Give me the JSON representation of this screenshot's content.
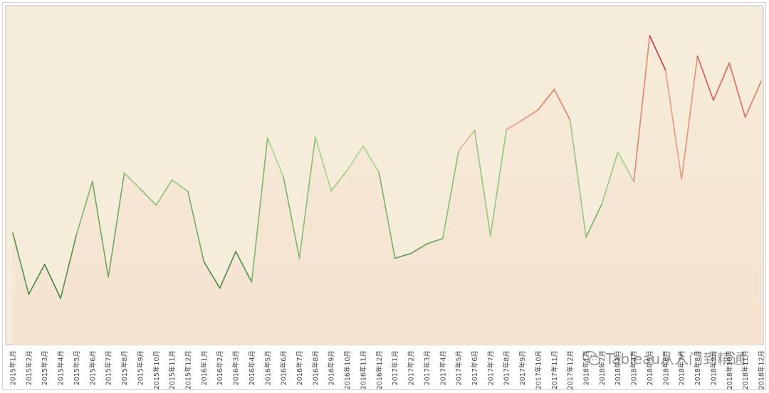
{
  "chart_data": {
    "type": "area",
    "categories": [
      "2015年1月",
      "2015年2月",
      "2015年3月",
      "2015年4月",
      "2015年5月",
      "2015年6月",
      "2015年7月",
      "2015年8月",
      "2015年9月",
      "2015年10月",
      "2015年11月",
      "2015年12月",
      "2016年1月",
      "2016年2月",
      "2016年3月",
      "2016年4月",
      "2016年5月",
      "2016年6月",
      "2016年7月",
      "2016年8月",
      "2016年9月",
      "2016年10月",
      "2016年11月",
      "2016年12月",
      "2017年1月",
      "2017年2月",
      "2017年3月",
      "2017年4月",
      "2017年5月",
      "2017年6月",
      "2017年7月",
      "2017年8月",
      "2017年9月",
      "2017年10月",
      "2017年11月",
      "2017年12月",
      "2018年1月",
      "2018年2月",
      "2018年3月",
      "2018年4月",
      "2018年5月",
      "2018年6月",
      "2018年7月",
      "2018年8月",
      "2018年9月",
      "2018年10月",
      "2018年11月",
      "2018年12月"
    ],
    "values": [
      164,
      74,
      118,
      68,
      162,
      240,
      99,
      252,
      229,
      205,
      242,
      225,
      122,
      83,
      137,
      92,
      304,
      246,
      127,
      305,
      226,
      256,
      292,
      253,
      127,
      134,
      148,
      156,
      285,
      315,
      160,
      316,
      330,
      345,
      375,
      330,
      158,
      207,
      283,
      240,
      454,
      403,
      243,
      424,
      359,
      414,
      334,
      387
    ],
    "ylim": [
      0,
      474
    ],
    "grid": false,
    "legend": "none",
    "colors": {
      "low": "#2e7a35",
      "mid": "#a6d98c",
      "high_mid": "#f0a88a",
      "high": "#c2182c",
      "area_top": "#f5ecd8",
      "area_bottom": "#f5e2cf",
      "plot_bg": "#f5ecd9",
      "plot_border": "#bbbbbb"
    }
  },
  "watermark": {
    "text": "Tableau从入门到精通",
    "icon": "wechat-icon"
  }
}
